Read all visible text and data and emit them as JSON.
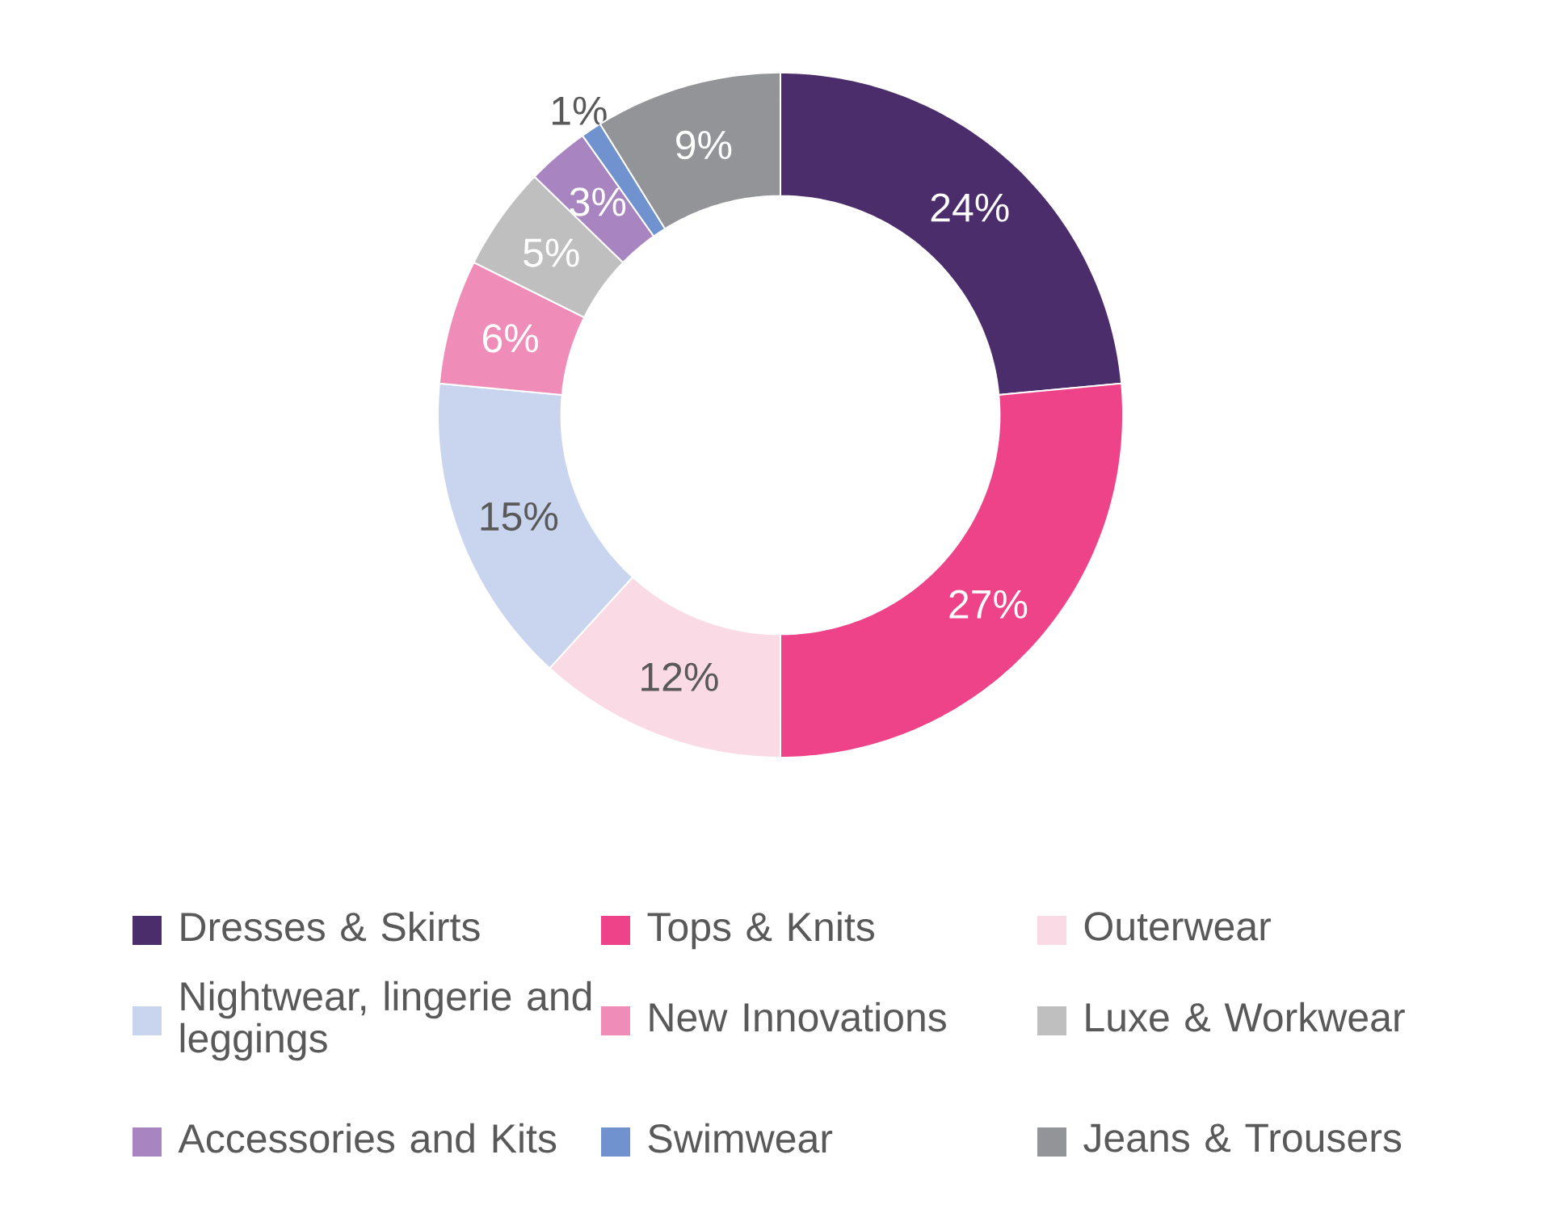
{
  "chart_data": {
    "type": "donut",
    "categories": [
      "Dresses & Skirts",
      "Tops & Knits",
      "Outerwear",
      "Nightwear, lingerie and leggings",
      "New Innovations",
      "Luxe & Workwear",
      "Accessories and Kits",
      "Swimwear",
      "Jeans & Trousers"
    ],
    "values": [
      24,
      27,
      12,
      15,
      6,
      5,
      3,
      1,
      9
    ],
    "colors": [
      "#4b2d6b",
      "#ee4289",
      "#fadbe5",
      "#c9d5ee",
      "#f08cb8",
      "#c0bfc0",
      "#a885c0",
      "#7092cf",
      "#939497"
    ],
    "value_labels": [
      "24%",
      "27%",
      "12%",
      "15%",
      "6%",
      "5%",
      "3%",
      "1%",
      "9%"
    ],
    "legend": "bottom"
  }
}
